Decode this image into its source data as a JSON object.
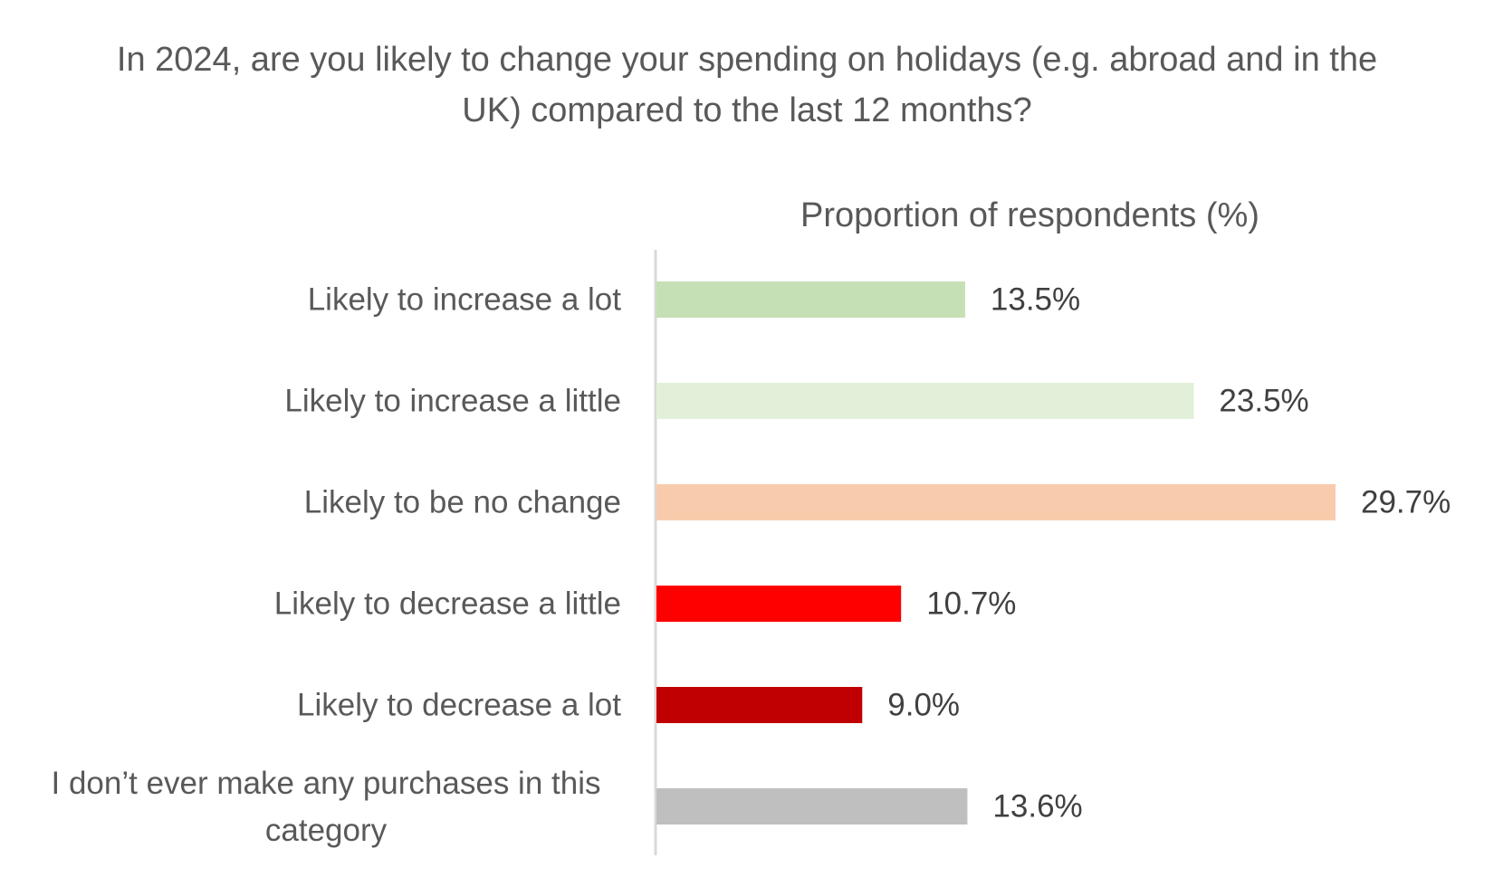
{
  "chart_data": {
    "type": "bar",
    "orientation": "horizontal",
    "title": "In 2024, are you likely to change your spending on holidays (e.g. abroad and in the UK) compared to the last 12 months?",
    "xlabel": "Proportion of respondents (%)",
    "ylabel": "",
    "categories": [
      "Likely to increase a lot",
      "Likely to increase a little",
      "Likely to be no change",
      "Likely to decrease a little",
      "Likely to decrease a lot",
      "I don’t ever make any purchases in this category"
    ],
    "category_lines": [
      [
        "Likely to increase a lot"
      ],
      [
        "Likely to increase a little"
      ],
      [
        "Likely to be no change"
      ],
      [
        "Likely to decrease a little"
      ],
      [
        "Likely to decrease a lot"
      ],
      [
        "I don’t ever make any purchases in this",
        "category"
      ]
    ],
    "values": [
      13.5,
      23.5,
      29.7,
      10.7,
      9.0,
      13.6
    ],
    "data_labels": [
      "13.5%",
      "23.5%",
      "29.7%",
      "10.7%",
      "9.0%",
      "13.6%"
    ],
    "colors": [
      "#c5e0b4",
      "#e2f0d9",
      "#f8cbad",
      "#ff0000",
      "#c00000",
      "#bfbfbf"
    ],
    "xlim": [
      0,
      29.7
    ],
    "grid": false,
    "legend": "none"
  },
  "colors": {
    "title_text": "#595959",
    "category_text": "#595959",
    "label_text": "#404040",
    "axis_line": "#d9d9d9"
  }
}
